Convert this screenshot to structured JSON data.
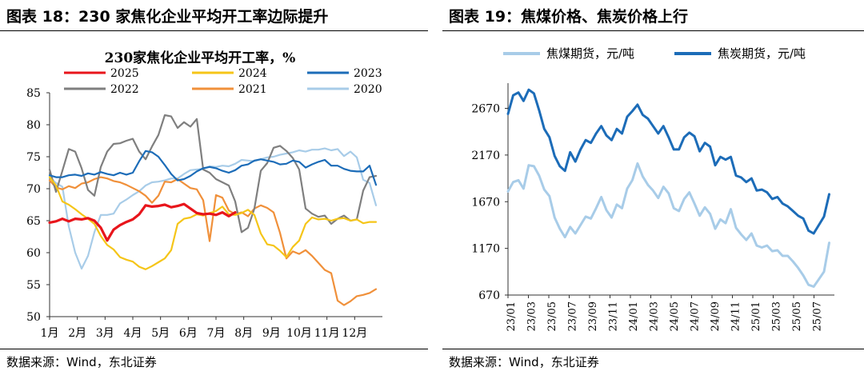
{
  "left_panel": {
    "figure_title": "图表 18：230 家焦化企业平均开工率边际提升",
    "source": "数据来源：Wind，东北证券"
  },
  "right_panel": {
    "figure_title": "图表 19：焦煤价格、焦炭价格上行",
    "source": "数据来源：Wind，东北证券"
  },
  "chart_data": [
    {
      "type": "line",
      "title": "230家焦化企业平均开工率，%",
      "xlabel": "",
      "ylabel": "",
      "x_ticks": [
        "1月",
        "2月",
        "3月",
        "4月",
        "5月",
        "6月",
        "7月",
        "8月",
        "9月",
        "10月",
        "11月",
        "12月"
      ],
      "ylim": [
        50,
        85
      ],
      "y_ticks": [
        50,
        55,
        60,
        65,
        70,
        75,
        80,
        85
      ],
      "grid": false,
      "legend_position": "top",
      "x_range": [
        0,
        52
      ],
      "series": [
        {
          "name": "2025",
          "color": "#e8151b",
          "width": 3.2,
          "x": [
            0,
            1,
            2,
            3,
            4,
            5,
            6,
            7,
            8,
            9,
            10,
            11,
            12,
            13,
            14,
            15,
            16,
            17,
            18,
            19,
            20,
            21,
            22,
            23,
            24,
            25,
            26,
            27,
            28,
            29
          ],
          "values": [
            64.7,
            64.9,
            65.3,
            64.9,
            65.3,
            65.2,
            65.4,
            65.0,
            63.9,
            61.9,
            63.6,
            64.3,
            64.8,
            65.2,
            66.0,
            67.4,
            67.2,
            67.3,
            67.5,
            67.1,
            67.3,
            67.6,
            66.9,
            66.2,
            66.0,
            66.1,
            65.9,
            66.3,
            65.7,
            66.3
          ]
        },
        {
          "name": "2024",
          "color": "#f5c518",
          "width": 2.2,
          "x": [
            0,
            1,
            2,
            3,
            4,
            5,
            6,
            7,
            8,
            9,
            10,
            11,
            12,
            13,
            14,
            15,
            16,
            17,
            18,
            19,
            20,
            21,
            22,
            23,
            24,
            25,
            26,
            27,
            28,
            29,
            30,
            31,
            32,
            33,
            34,
            35,
            36,
            37,
            38,
            39,
            40,
            41,
            42,
            43,
            44,
            45,
            46,
            47,
            48,
            49,
            50,
            51
          ],
          "values": [
            71.8,
            70.5,
            68.0,
            67.5,
            66.8,
            66.0,
            65.3,
            64.5,
            62.6,
            61.2,
            60.5,
            59.3,
            58.9,
            58.6,
            57.8,
            57.4,
            57.9,
            58.5,
            59.1,
            60.4,
            64.5,
            65.3,
            65.5,
            66.0,
            65.8,
            66.2,
            66.5,
            67.2,
            66.0,
            65.9,
            66.2,
            66.7,
            65.9,
            63.0,
            61.3,
            61.1,
            60.3,
            59.3,
            60.9,
            61.9,
            64.5,
            65.5,
            65.2,
            65.3,
            65.0,
            65.3,
            65.4,
            65.0,
            65.2,
            64.6,
            64.8,
            64.8
          ]
        },
        {
          "name": "2023",
          "color": "#1c6cb8",
          "width": 2.2,
          "x": [
            0,
            1,
            2,
            3,
            4,
            5,
            6,
            7,
            8,
            9,
            10,
            11,
            12,
            13,
            14,
            15,
            16,
            17,
            18,
            19,
            20,
            21,
            22,
            23,
            24,
            25,
            26,
            27,
            28,
            29,
            30,
            31,
            32,
            33,
            34,
            35,
            36,
            37,
            38,
            39,
            40,
            41,
            42,
            43,
            44,
            45,
            46,
            47,
            48,
            49,
            50,
            51
          ],
          "values": [
            72.1,
            71.8,
            71.8,
            72.1,
            72.2,
            72.0,
            72.4,
            72.2,
            72.6,
            72.3,
            72.1,
            72.5,
            72.2,
            72.5,
            74.3,
            75.9,
            75.7,
            75.0,
            73.7,
            72.3,
            71.3,
            71.5,
            72.0,
            72.7,
            73.2,
            73.4,
            73.2,
            72.8,
            72.5,
            72.9,
            73.6,
            73.8,
            74.4,
            74.6,
            74.4,
            74.2,
            73.8,
            73.9,
            74.4,
            74.2,
            73.3,
            73.8,
            74.2,
            74.5,
            73.6,
            73.6,
            73.1,
            72.8,
            72.7,
            72.7,
            73.6,
            70.6
          ]
        },
        {
          "name": "2022",
          "color": "#7f7f7f",
          "width": 2.2,
          "x": [
            0,
            1,
            2,
            3,
            4,
            5,
            6,
            7,
            8,
            9,
            10,
            11,
            12,
            13,
            14,
            15,
            16,
            17,
            18,
            19,
            20,
            21,
            22,
            23,
            24,
            25,
            26,
            27,
            28,
            29,
            30,
            31,
            32,
            33,
            34,
            35,
            36,
            37,
            38,
            39,
            40,
            41,
            42,
            43,
            44,
            45,
            46,
            47,
            48,
            49,
            50,
            51
          ],
          "values": [
            73.0,
            69.5,
            72.8,
            76.2,
            75.8,
            73.2,
            69.8,
            68.9,
            73.4,
            75.8,
            77.0,
            77.1,
            77.5,
            77.8,
            75.8,
            74.6,
            76.6,
            78.4,
            81.5,
            81.3,
            79.5,
            80.4,
            79.7,
            80.9,
            73.0,
            72.5,
            71.5,
            71.0,
            70.5,
            68.0,
            63.2,
            63.9,
            66.9,
            72.8,
            74.0,
            76.4,
            76.7,
            75.9,
            74.8,
            73.0,
            66.9,
            66.1,
            65.6,
            65.8,
            64.5,
            65.3,
            65.8,
            65.0,
            65.2,
            69.7,
            71.8,
            72.0
          ]
        },
        {
          "name": "2021",
          "color": "#f0903a",
          "width": 2.2,
          "x": [
            0,
            1,
            2,
            3,
            4,
            5,
            6,
            7,
            8,
            9,
            10,
            11,
            12,
            13,
            14,
            15,
            16,
            17,
            18,
            19,
            20,
            21,
            22,
            23,
            24,
            25,
            26,
            27,
            28,
            29,
            30,
            31,
            32,
            33,
            34,
            35,
            36,
            37,
            38,
            39,
            40,
            41,
            42,
            43,
            44,
            45,
            46,
            47,
            48,
            49,
            50,
            51
          ],
          "values": [
            71.3,
            70.2,
            69.9,
            70.4,
            70.1,
            70.8,
            71.0,
            71.5,
            71.8,
            71.6,
            71.2,
            71.0,
            70.6,
            70.1,
            69.6,
            68.9,
            67.8,
            68.9,
            71.1,
            71.0,
            71.5,
            70.8,
            70.1,
            69.9,
            68.2,
            61.8,
            69.0,
            68.6,
            66.6,
            66.0,
            66.3,
            65.7,
            66.9,
            67.4,
            67.0,
            66.3,
            63.1,
            59.1,
            60.2,
            59.8,
            60.4,
            59.5,
            58.4,
            57.3,
            56.8,
            52.5,
            51.8,
            52.4,
            53.2,
            53.4,
            53.7,
            54.3
          ]
        },
        {
          "name": "2020",
          "color": "#a8cce8",
          "width": 2.2,
          "x": [
            0,
            1,
            2,
            3,
            4,
            5,
            6,
            7,
            8,
            9,
            10,
            11,
            12,
            13,
            14,
            15,
            16,
            17,
            18,
            19,
            20,
            21,
            22,
            23,
            24,
            25,
            26,
            27,
            28,
            29,
            30,
            31,
            32,
            33,
            34,
            35,
            36,
            37,
            38,
            39,
            40,
            41,
            42,
            43,
            44,
            45,
            46,
            47,
            48,
            49,
            50,
            51
          ],
          "values": [
            71.8,
            70.9,
            70.3,
            64.1,
            60.0,
            57.5,
            59.5,
            63.2,
            65.9,
            65.9,
            66.1,
            67.7,
            68.3,
            69.0,
            69.6,
            70.5,
            71.0,
            71.1,
            71.3,
            71.6,
            71.6,
            72.3,
            72.9,
            73.0,
            73.1,
            73.5,
            73.4,
            73.6,
            73.5,
            73.9,
            74.5,
            74.4,
            74.3,
            74.6,
            74.9,
            75.0,
            75.3,
            75.5,
            75.7,
            76.0,
            75.8,
            76.1,
            76.1,
            76.3,
            76.0,
            76.2,
            75.1,
            75.8,
            74.9,
            71.4,
            70.9,
            67.4
          ]
        }
      ]
    },
    {
      "type": "line",
      "title": "",
      "xlabel": "",
      "ylabel": "",
      "x_ticks": [
        "23/01",
        "23/03",
        "23/05",
        "23/07",
        "23/09",
        "23/11",
        "24/01",
        "24/03",
        "24/05",
        "24/07",
        "24/09",
        "24/11",
        "25/01",
        "25/03",
        "25/05",
        "25/07"
      ],
      "ylim": [
        670,
        2940
      ],
      "y_ticks": [
        670,
        1170,
        1670,
        2170,
        2670
      ],
      "grid": false,
      "legend_position": "top",
      "x_range": [
        0,
        31.5
      ],
      "series": [
        {
          "name": "焦煤期货，元/吨",
          "color": "#a8cce8",
          "width": 3.0,
          "x": [
            0,
            0.5,
            1,
            1.5,
            2,
            2.5,
            3,
            3.5,
            4,
            4.5,
            5,
            5.5,
            6,
            6.5,
            7,
            7.5,
            8,
            8.5,
            9,
            9.5,
            10,
            10.5,
            11,
            11.5,
            12,
            12.5,
            13,
            13.5,
            14,
            14.5,
            15,
            15.5,
            16,
            16.5,
            17,
            17.5,
            18,
            18.5,
            19,
            19.5,
            20,
            20.5,
            21,
            21.5,
            22,
            22.5,
            23,
            23.5,
            24,
            24.5,
            25,
            25.5,
            26,
            26.5,
            27,
            27.5,
            28,
            28.5,
            29,
            29.5,
            30,
            30.5,
            31
          ],
          "values": [
            1780,
            1880,
            1900,
            1810,
            2060,
            2050,
            1950,
            1800,
            1730,
            1500,
            1380,
            1290,
            1400,
            1330,
            1420,
            1510,
            1490,
            1600,
            1720,
            1580,
            1500,
            1640,
            1600,
            1810,
            1900,
            2080,
            1940,
            1850,
            1790,
            1710,
            1830,
            1760,
            1600,
            1570,
            1700,
            1770,
            1650,
            1520,
            1610,
            1540,
            1380,
            1480,
            1440,
            1590,
            1390,
            1320,
            1260,
            1330,
            1200,
            1180,
            1200,
            1140,
            1150,
            1090,
            1090,
            1030,
            960,
            880,
            780,
            760,
            840,
            920,
            1230
          ]
        },
        {
          "name": "焦炭期货，元/吨",
          "color": "#1c6cb8",
          "width": 3.0,
          "x": [
            0,
            0.5,
            1,
            1.5,
            2,
            2.5,
            3,
            3.5,
            4,
            4.5,
            5,
            5.5,
            6,
            6.5,
            7,
            7.5,
            8,
            8.5,
            9,
            9.5,
            10,
            10.5,
            11,
            11.5,
            12,
            12.5,
            13,
            13.5,
            14,
            14.5,
            15,
            15.5,
            16,
            16.5,
            17,
            17.5,
            18,
            18.5,
            19,
            19.5,
            20,
            20.5,
            21,
            21.5,
            22,
            22.5,
            23,
            23.5,
            24,
            24.5,
            25,
            25.5,
            26,
            26.5,
            27,
            27.5,
            28,
            28.5,
            29,
            29.5,
            30,
            30.5,
            31
          ],
          "values": [
            2610,
            2810,
            2840,
            2750,
            2870,
            2830,
            2650,
            2450,
            2360,
            2160,
            2050,
            2000,
            2200,
            2100,
            2230,
            2330,
            2300,
            2400,
            2480,
            2380,
            2330,
            2450,
            2400,
            2580,
            2640,
            2710,
            2600,
            2560,
            2480,
            2400,
            2480,
            2360,
            2230,
            2230,
            2360,
            2410,
            2370,
            2210,
            2300,
            2260,
            2060,
            2150,
            2120,
            2150,
            1950,
            1930,
            1880,
            1920,
            1790,
            1800,
            1770,
            1700,
            1720,
            1650,
            1620,
            1570,
            1520,
            1490,
            1360,
            1330,
            1420,
            1510,
            1750
          ]
        }
      ]
    }
  ]
}
